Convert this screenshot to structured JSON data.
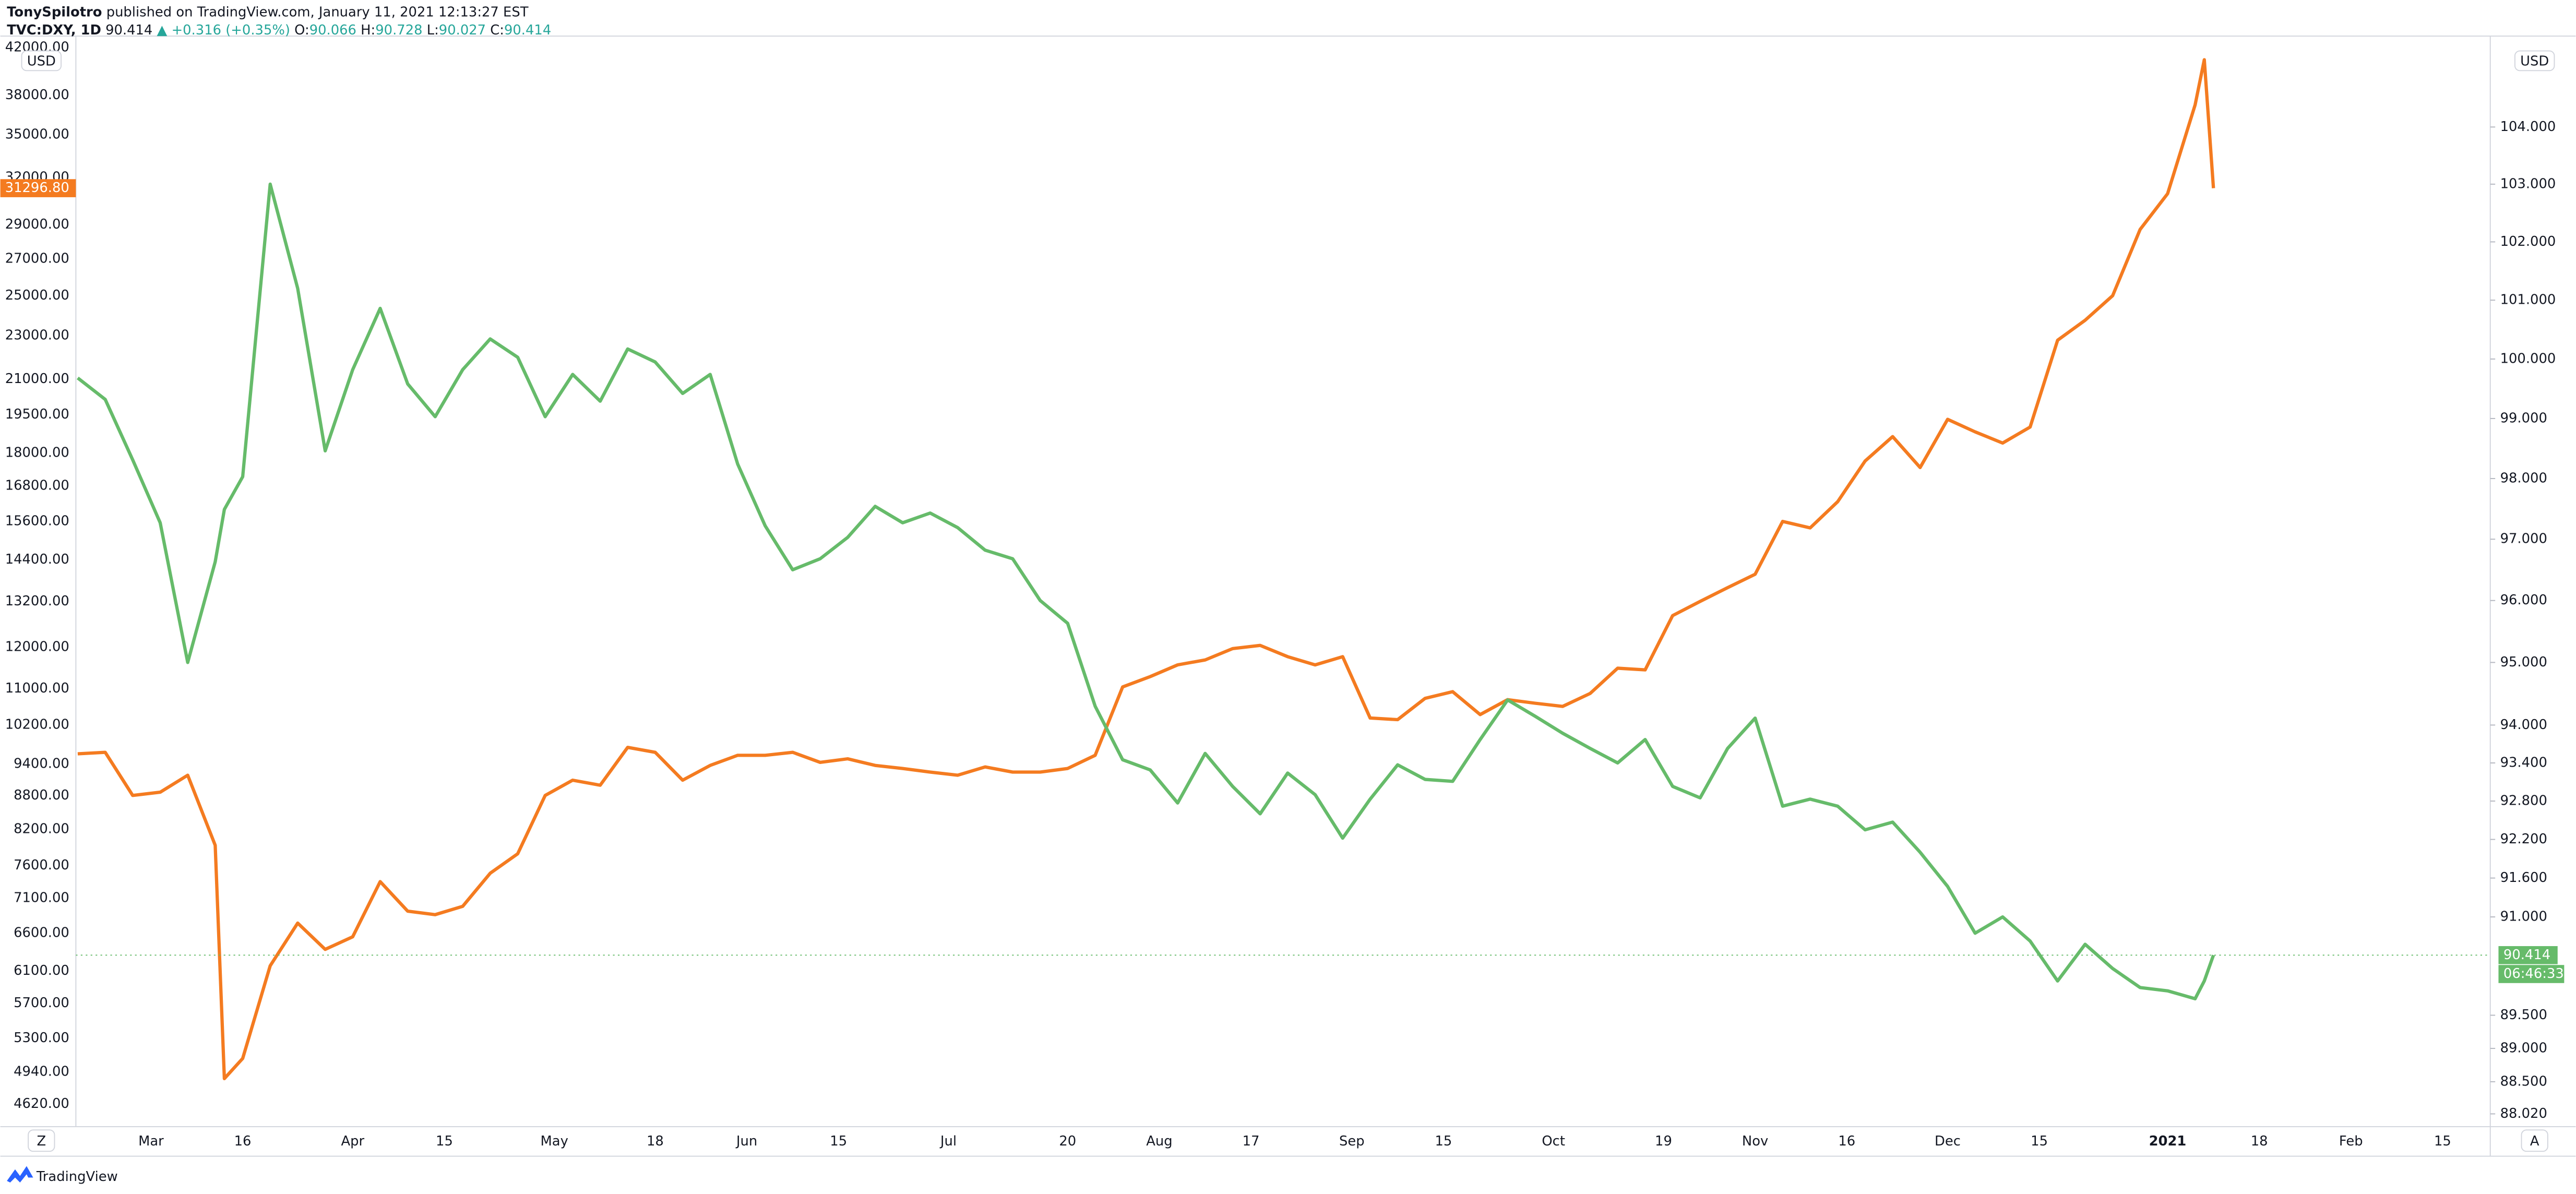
{
  "header": {
    "author": "TonySpilotro",
    "published": "published on TradingView.com, January 11, 2021 12:13:27 EST",
    "symbol": "TVC:DXY, 1D",
    "last": "90.414",
    "change": "▲ +0.316 (+0.35%)",
    "ohlc": [
      {
        "label": "O:",
        "value": "90.066"
      },
      {
        "label": "H:",
        "value": "90.728"
      },
      {
        "label": "L:",
        "value": "90.027"
      },
      {
        "label": "C:",
        "value": "90.414"
      }
    ]
  },
  "footer": {
    "brand": "TradingView",
    "left_button": "Z",
    "right_button": "A"
  },
  "chart_data": {
    "type": "line",
    "grid": true,
    "yscale": "log",
    "y2scale": "log",
    "y_unit_label": "USD",
    "y2_unit_label": "USD",
    "countdown": "06:46:33",
    "x": [
      -8,
      -5,
      -2,
      1,
      4,
      7,
      8,
      10,
      13,
      16,
      19,
      22,
      25,
      28,
      31,
      34,
      37,
      40,
      43,
      46,
      49,
      52,
      55,
      58,
      61,
      64,
      67,
      70,
      73,
      76,
      79,
      82,
      85,
      88,
      91,
      94,
      97,
      100,
      103,
      106,
      109,
      112,
      115,
      118,
      121,
      124,
      127,
      130,
      133,
      136,
      139,
      142,
      145,
      148,
      151,
      154,
      157,
      160,
      163,
      166,
      169,
      172,
      175,
      178,
      181,
      184,
      187,
      190,
      193,
      196,
      199,
      202,
      205,
      208,
      211,
      214,
      217,
      220,
      223,
      224,
      225
    ],
    "xlim": [
      -8.2,
      255.2
    ],
    "xticks": [
      {
        "value": 0,
        "label": "Mar"
      },
      {
        "value": 10,
        "label": "16"
      },
      {
        "value": 22,
        "label": "Apr"
      },
      {
        "value": 32,
        "label": "15"
      },
      {
        "value": 44,
        "label": "May"
      },
      {
        "value": 55,
        "label": "18"
      },
      {
        "value": 65,
        "label": "Jun"
      },
      {
        "value": 75,
        "label": "15"
      },
      {
        "value": 87,
        "label": "Jul"
      },
      {
        "value": 100,
        "label": "20"
      },
      {
        "value": 110,
        "label": "Aug"
      },
      {
        "value": 120,
        "label": "17"
      },
      {
        "value": 131,
        "label": "Sep"
      },
      {
        "value": 141,
        "label": "15"
      },
      {
        "value": 153,
        "label": "Oct"
      },
      {
        "value": 165,
        "label": "19"
      },
      {
        "value": 175,
        "label": "Nov"
      },
      {
        "value": 185,
        "label": "16"
      },
      {
        "value": 196,
        "label": "Dec"
      },
      {
        "value": 206,
        "label": "15"
      },
      {
        "value": 220,
        "label": "2021"
      },
      {
        "value": 230,
        "label": "18"
      },
      {
        "value": 240,
        "label": "Feb"
      },
      {
        "value": 250,
        "label": "15"
      }
    ],
    "ylim": [
      4405,
      43000
    ],
    "yticks": [
      {
        "value": 42000,
        "label": "42000.00"
      },
      {
        "value": 38000,
        "label": "38000.00"
      },
      {
        "value": 35000,
        "label": "35000.00"
      },
      {
        "value": 32000,
        "label": "32000.00"
      },
      {
        "value": 29000,
        "label": "29000.00"
      },
      {
        "value": 27000,
        "label": "27000.00"
      },
      {
        "value": 25000,
        "label": "25000.00"
      },
      {
        "value": 23000,
        "label": "23000.00"
      },
      {
        "value": 21000,
        "label": "21000.00"
      },
      {
        "value": 19500,
        "label": "19500.00"
      },
      {
        "value": 18000,
        "label": "18000.00"
      },
      {
        "value": 16800,
        "label": "16800.00"
      },
      {
        "value": 15600,
        "label": "15600.00"
      },
      {
        "value": 14400,
        "label": "14400.00"
      },
      {
        "value": 13200,
        "label": "13200.00"
      },
      {
        "value": 12000,
        "label": "12000.00"
      },
      {
        "value": 11000,
        "label": "11000.00"
      },
      {
        "value": 10200,
        "label": "10200.00"
      },
      {
        "value": 9400,
        "label": "9400.00"
      },
      {
        "value": 8800,
        "label": "8800.00"
      },
      {
        "value": 8200,
        "label": "8200.00"
      },
      {
        "value": 7600,
        "label": "7600.00"
      },
      {
        "value": 7100,
        "label": "7100.00"
      },
      {
        "value": 6600,
        "label": "6600.00"
      },
      {
        "value": 6100,
        "label": "6100.00"
      },
      {
        "value": 5700,
        "label": "5700.00"
      },
      {
        "value": 5300,
        "label": "5300.00"
      },
      {
        "value": 4940,
        "label": "4940.00"
      },
      {
        "value": 4620,
        "label": "4620.00"
      }
    ],
    "y2lim": [
      87.83,
      105.61
    ],
    "y2ticks": [
      {
        "value": 104,
        "label": "104.000"
      },
      {
        "value": 103,
        "label": "103.000"
      },
      {
        "value": 102,
        "label": "102.000"
      },
      {
        "value": 101,
        "label": "101.000"
      },
      {
        "value": 100,
        "label": "100.000"
      },
      {
        "value": 99,
        "label": "99.000"
      },
      {
        "value": 98,
        "label": "98.000"
      },
      {
        "value": 97,
        "label": "97.000"
      },
      {
        "value": 96,
        "label": "96.000"
      },
      {
        "value": 95,
        "label": "95.000"
      },
      {
        "value": 94,
        "label": "94.000"
      },
      {
        "value": 93.4,
        "label": "93.400"
      },
      {
        "value": 92.8,
        "label": "92.800"
      },
      {
        "value": 92.2,
        "label": "92.200"
      },
      {
        "value": 91.6,
        "label": "91.600"
      },
      {
        "value": 91,
        "label": "91.000"
      },
      {
        "value": 89.5,
        "label": "89.500"
      },
      {
        "value": 89,
        "label": "89.000"
      },
      {
        "value": 88.5,
        "label": "88.500"
      },
      {
        "value": 88.02,
        "label": "88.020"
      }
    ],
    "series": [
      {
        "color": "#f47b20",
        "axis": "y",
        "last_label": "31296.80",
        "values": [
          9600,
          9630,
          8800,
          8860,
          9180,
          7930,
          4870,
          5080,
          6165,
          6740,
          6380,
          6550,
          7350,
          6910,
          6860,
          6980,
          7480,
          7790,
          8800,
          9085,
          8990,
          9730,
          9630,
          9085,
          9370,
          9570,
          9570,
          9630,
          9430,
          9500,
          9370,
          9310,
          9240,
          9180,
          9340,
          9240,
          9240,
          9310,
          9570,
          11040,
          11280,
          11560,
          11680,
          11960,
          12040,
          11760,
          11560,
          11760,
          10345,
          10310,
          10780,
          10930,
          10420,
          10750,
          10670,
          10600,
          10890,
          11480,
          11440,
          12814,
          13200,
          13584,
          13970,
          15600,
          15390,
          16255,
          17700,
          18625,
          17460,
          19310,
          18810,
          18375,
          19000,
          22780,
          23750,
          25000,
          28710,
          30940,
          37250,
          40930,
          31296.8
        ]
      },
      {
        "color": "#66bb6a",
        "axis": "y2",
        "last_label": "90.414",
        "values": [
          99.68,
          99.32,
          98.31,
          97.27,
          95.0,
          96.63,
          97.49,
          98.03,
          103.0,
          101.2,
          98.46,
          99.82,
          100.86,
          99.58,
          99.03,
          99.82,
          100.34,
          100.03,
          99.03,
          99.74,
          99.29,
          100.17,
          99.95,
          99.42,
          99.74,
          98.24,
          97.22,
          96.5,
          96.68,
          97.03,
          97.54,
          97.27,
          97.43,
          97.19,
          96.82,
          96.68,
          96.0,
          95.63,
          94.3,
          93.45,
          93.29,
          92.77,
          93.55,
          93.03,
          92.6,
          93.24,
          92.9,
          92.22,
          92.83,
          93.37,
          93.14,
          93.11,
          93.77,
          94.4,
          94.14,
          93.87,
          93.63,
          93.4,
          93.77,
          93.03,
          92.85,
          93.63,
          94.11,
          92.72,
          92.83,
          92.72,
          92.35,
          92.47,
          92.0,
          91.47,
          90.75,
          91.0,
          90.63,
          90.02,
          90.58,
          90.21,
          89.92,
          89.87,
          89.75,
          90.02,
          90.414
        ]
      }
    ]
  }
}
